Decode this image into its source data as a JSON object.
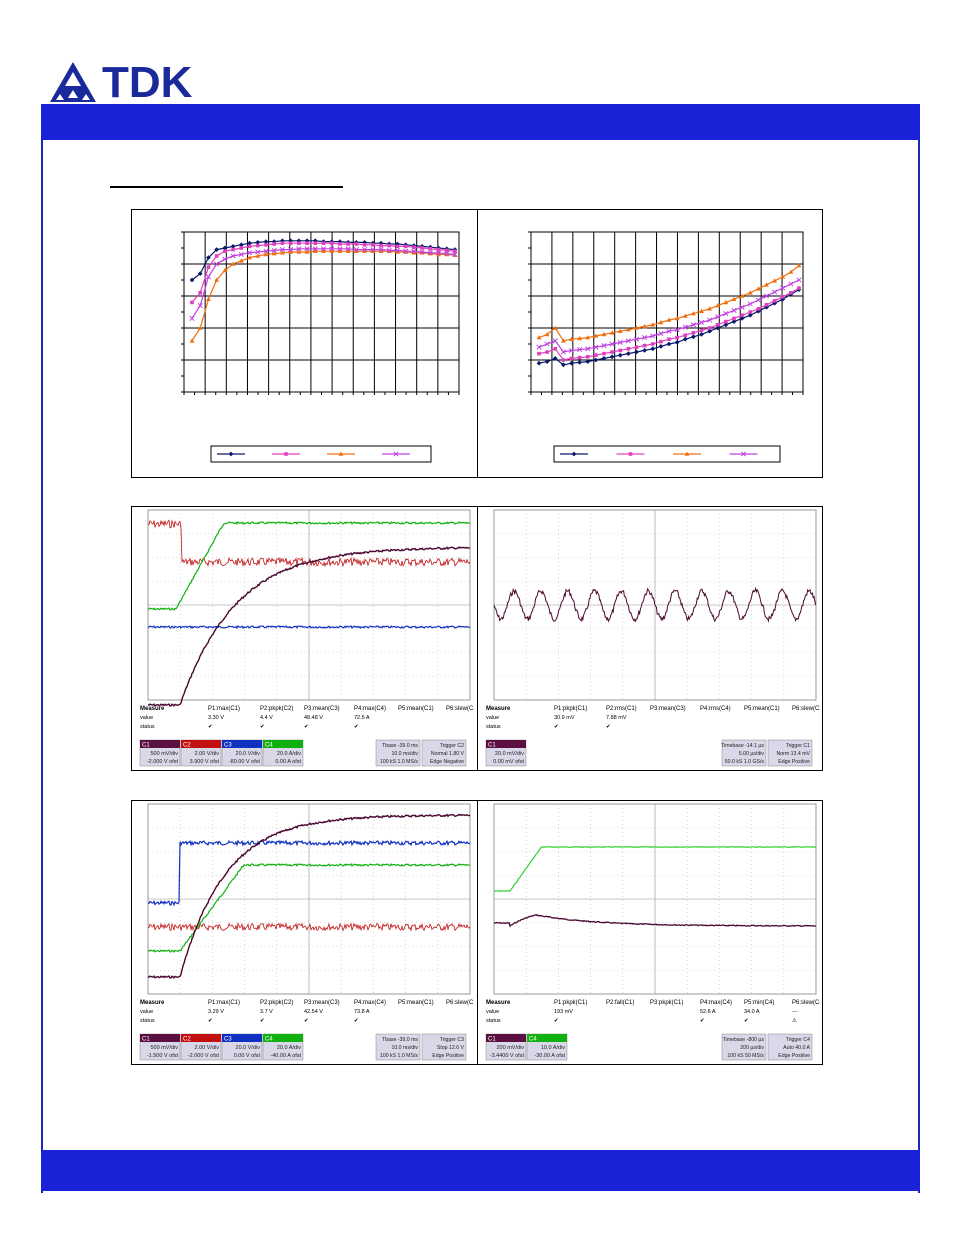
{
  "brand": {
    "name": "TDK",
    "color": "#1a2a9a"
  },
  "colors": {
    "header": "#1a22d8",
    "navy": "#0a1a6a",
    "magenta": "#e040c0",
    "orange": "#f07010",
    "purple": "#c040e0"
  },
  "chart_data": [
    {
      "type": "line",
      "legend": [
        "",
        "",
        "",
        ""
      ],
      "markers": [
        "diamond",
        "square",
        "triangle",
        "x"
      ],
      "series": [
        {
          "values": [
            0.7,
            0.74,
            0.84,
            0.89,
            0.9,
            0.91,
            0.92,
            0.93,
            0.935,
            0.94,
            0.94,
            0.945,
            0.945,
            0.945,
            0.945,
            0.945,
            0.94,
            0.94,
            0.94,
            0.935,
            0.935,
            0.935,
            0.93,
            0.93,
            0.925,
            0.925,
            0.92,
            0.915,
            0.91,
            0.905,
            0.9,
            0.895,
            0.89
          ]
        },
        {
          "values": [
            0.56,
            0.62,
            0.78,
            0.85,
            0.88,
            0.89,
            0.9,
            0.91,
            0.915,
            0.92,
            0.925,
            0.93,
            0.93,
            0.93,
            0.93,
            0.93,
            0.93,
            0.93,
            0.925,
            0.925,
            0.925,
            0.92,
            0.92,
            0.915,
            0.915,
            0.91,
            0.91,
            0.905,
            0.9,
            0.895,
            0.89,
            0.885,
            0.88
          ]
        },
        {
          "values": [
            0.32,
            0.4,
            0.58,
            0.7,
            0.76,
            0.8,
            0.82,
            0.84,
            0.85,
            0.86,
            0.865,
            0.87,
            0.875,
            0.875,
            0.875,
            0.88,
            0.88,
            0.88,
            0.88,
            0.88,
            0.88,
            0.88,
            0.88,
            0.88,
            0.88,
            0.875,
            0.875,
            0.87,
            0.87,
            0.865,
            0.86,
            0.86,
            0.855
          ]
        },
        {
          "values": [
            0.46,
            0.54,
            0.72,
            0.8,
            0.83,
            0.85,
            0.86,
            0.87,
            0.875,
            0.88,
            0.885,
            0.89,
            0.89,
            0.895,
            0.895,
            0.895,
            0.895,
            0.895,
            0.895,
            0.895,
            0.89,
            0.89,
            0.89,
            0.89,
            0.885,
            0.885,
            0.88,
            0.88,
            0.875,
            0.87,
            0.87,
            0.865,
            0.86
          ]
        }
      ]
    },
    {
      "type": "line",
      "legend": [
        "",
        "",
        "",
        ""
      ],
      "markers": [
        "diamond",
        "square",
        "triangle",
        "x"
      ],
      "series": [
        {
          "values": [
            0.18,
            0.19,
            0.21,
            0.17,
            0.18,
            0.185,
            0.19,
            0.2,
            0.21,
            0.22,
            0.23,
            0.24,
            0.25,
            0.26,
            0.27,
            0.285,
            0.3,
            0.31,
            0.33,
            0.345,
            0.36,
            0.38,
            0.4,
            0.42,
            0.44,
            0.46,
            0.48,
            0.505,
            0.53,
            0.555,
            0.58,
            0.61,
            0.64
          ]
        },
        {
          "values": [
            0.24,
            0.25,
            0.27,
            0.2,
            0.21,
            0.215,
            0.22,
            0.23,
            0.24,
            0.25,
            0.26,
            0.27,
            0.28,
            0.29,
            0.3,
            0.315,
            0.33,
            0.34,
            0.355,
            0.37,
            0.385,
            0.4,
            0.42,
            0.44,
            0.46,
            0.48,
            0.5,
            0.52,
            0.545,
            0.57,
            0.595,
            0.62,
            0.65
          ]
        },
        {
          "values": [
            0.34,
            0.36,
            0.4,
            0.32,
            0.33,
            0.335,
            0.34,
            0.35,
            0.36,
            0.37,
            0.38,
            0.39,
            0.4,
            0.41,
            0.42,
            0.435,
            0.45,
            0.46,
            0.475,
            0.49,
            0.505,
            0.52,
            0.54,
            0.56,
            0.58,
            0.6,
            0.62,
            0.645,
            0.67,
            0.695,
            0.72,
            0.75,
            0.79
          ]
        },
        {
          "values": [
            0.28,
            0.3,
            0.32,
            0.25,
            0.26,
            0.265,
            0.27,
            0.28,
            0.29,
            0.3,
            0.31,
            0.32,
            0.33,
            0.34,
            0.35,
            0.365,
            0.38,
            0.39,
            0.405,
            0.42,
            0.435,
            0.45,
            0.47,
            0.49,
            0.51,
            0.53,
            0.55,
            0.575,
            0.6,
            0.625,
            0.65,
            0.675,
            0.7
          ]
        }
      ]
    }
  ],
  "scopes": {
    "s1": {
      "measure_header": [
        "Measure",
        "P1:max(C1)",
        "P2:pkpk(C2)",
        "P3:mean(C3)",
        "P4:max(C4)",
        "P5:mean(C1)",
        "P6:slew(C1)"
      ],
      "value_row": [
        "value",
        "3.30 V",
        "4.4 V",
        "48.48 V",
        "72.5 A",
        "",
        ""
      ],
      "status_row": [
        "status",
        "✔",
        "✔",
        "✔",
        "✔",
        "",
        ""
      ],
      "channels": [
        {
          "label": "C1",
          "line1": "500 mV/div",
          "line2": "-2.000 V ofst",
          "color": "#5a1040"
        },
        {
          "label": "C2",
          "line1": "2.00 V/div",
          "line2": "3.900 V ofst",
          "color": "#c01010"
        },
        {
          "label": "C3",
          "line1": "20.0 V/div",
          "line2": "-80.00 V ofst",
          "color": "#1030c0"
        },
        {
          "label": "C4",
          "line1": "20.0 A/div",
          "line2": "0.00 A ofst",
          "color": "#10b010"
        }
      ],
      "tbase": [
        "Tbase -39.0 ms",
        "10.0 ms/div",
        "100 kS 1.0 MS/s"
      ],
      "trigger": [
        "Trigger C2",
        "Normal 1.80 V",
        "Edge Negative"
      ]
    },
    "s2": {
      "measure_header": [
        "Measure",
        "P1:pkpk(C1)",
        "P2:rms(C1)",
        "P3:mean(C3)",
        "P4:rms(C4)",
        "P5:mean(C1)",
        "P6:slew(C3)"
      ],
      "value_row": [
        "value",
        "30.9 mV",
        "7.88 mV",
        "",
        "",
        "",
        ""
      ],
      "status_row": [
        "status",
        "✔",
        "✔",
        "",
        "",
        "",
        ""
      ],
      "channels": [
        {
          "label": "C1",
          "line1": "20.0 mV/div",
          "line2": "0.00 mV ofst",
          "color": "#5a1040"
        }
      ],
      "tbase": [
        "Timebase -14.1 µs",
        "5.00 µs/div",
        "50.0 kS 1.0 GS/s"
      ],
      "trigger": [
        "Trigger C1",
        "Norm 13.4 mV",
        "Edge Positive"
      ]
    },
    "s3": {
      "measure_header": [
        "Measure",
        "P1:max(C1)",
        "P2:pkpk(C2)",
        "P3:mean(C3)",
        "P4:max(C4)",
        "P5:mean(C1)",
        "P6:slew(C1)"
      ],
      "value_row": [
        "value",
        "3.29 V",
        "3.7 V",
        "42.54 V",
        "73.8 A",
        "",
        ""
      ],
      "status_row": [
        "status",
        "✔",
        "✔",
        "✔",
        "✔",
        "",
        ""
      ],
      "channels": [
        {
          "label": "C1",
          "line1": "500 mV/div",
          "line2": "-1.500 V ofst",
          "color": "#5a1040"
        },
        {
          "label": "C2",
          "line1": "2.00 V/div",
          "line2": "-2.000 V ofst",
          "color": "#c01010"
        },
        {
          "label": "C3",
          "line1": "20.0 V/div",
          "line2": "0.00 V ofst",
          "color": "#1030c0"
        },
        {
          "label": "C4",
          "line1": "20.0 A/div",
          "line2": "-40.00 A ofst",
          "color": "#10b010"
        }
      ],
      "tbase": [
        "Tbase -39.0 ms",
        "10.0 ms/div",
        "100 kS 1.0 MS/s"
      ],
      "trigger": [
        "Trigger C3",
        "Stop 12.6 V",
        "Edge Positive"
      ]
    },
    "s4": {
      "measure_header": [
        "Measure",
        "P1:pkpk(C1)",
        "P2:fall(C1)",
        "P3:pkpk(C1)",
        "P4:max(C4)",
        "P5:min(C4)",
        "P6:slew(C4)"
      ],
      "value_row": [
        "value",
        "193 mV",
        "",
        "",
        "52.6 A",
        "34.0 A",
        "---"
      ],
      "status_row": [
        "status",
        "✔",
        "",
        "",
        "✔",
        "✔",
        "⚠"
      ],
      "channels": [
        {
          "label": "C1",
          "line1": "200 mV/div",
          "line2": "-3.4400 V ofst",
          "color": "#5a1040"
        },
        {
          "label": "C4",
          "line1": "10.0 A/div",
          "line2": "-30.00 A ofst",
          "color": "#10b010"
        }
      ],
      "tbase": [
        "Timebase -800 µs",
        "200 µs/div",
        "100 kS 50 MS/s"
      ],
      "trigger": [
        "Trigger C4",
        "Auto 40.0 A",
        "Edge Positive"
      ]
    }
  }
}
